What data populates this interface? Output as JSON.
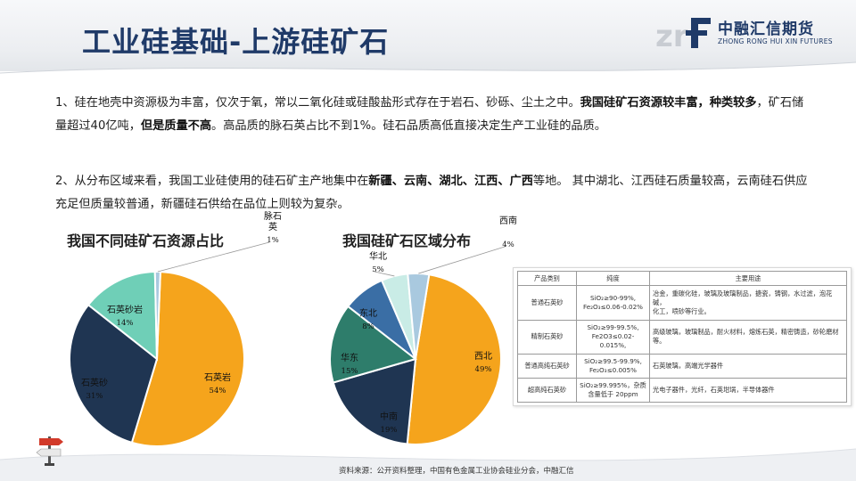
{
  "slide": {
    "title": "工业硅基础-上游硅矿石",
    "logo_cn": "中融汇信期货",
    "logo_en": "ZHONG RONG HUI XIN FUTURES",
    "source": "资料来源：公开资料整理，中国有色金属工业协会硅业分会，中融汇信"
  },
  "paragraphs": {
    "p1": [
      {
        "t": "1、硅在地壳中资源极为丰富，仅次于氧，常以二氧化硅或硅酸盐形式存在于岩石、砂砾、尘土之中。",
        "b": false
      },
      {
        "t": "我国硅矿石资源较丰富，种类较多",
        "b": true
      },
      {
        "t": "，矿石储量超过40亿吨，",
        "b": false
      },
      {
        "t": "但是质量不高",
        "b": true
      },
      {
        "t": "。高品质的脉石英占比不到1%。硅石品质高低直接决定生产工业硅的品质。",
        "b": false
      }
    ],
    "p2": [
      {
        "t": "2、从分布区域来看，我国工业硅使用的硅石矿主产地集中在",
        "b": false
      },
      {
        "t": "新疆、云南、湖北、江西、广西",
        "b": true
      },
      {
        "t": "等地。 其中湖北、江西硅石质量较高，云南硅石供应充足但质量较普通，新疆硅石供给在品位上则较为复杂。",
        "b": false
      }
    ]
  },
  "chart_data": [
    {
      "type": "pie",
      "title": "我国不同硅矿石资源占比",
      "slices": [
        {
          "name": "石英岩",
          "value": 54,
          "label": "54%",
          "color": "#f5a41c"
        },
        {
          "name": "石英砂",
          "value": 31,
          "label": "31%",
          "color": "#1f3552"
        },
        {
          "name": "石英砂岩",
          "value": 14,
          "label": "14%",
          "color": "#6fcfb7"
        },
        {
          "name": "脉石英",
          "value": 1,
          "label": "1%",
          "color": "#a9c9df"
        }
      ]
    },
    {
      "type": "pie",
      "title": "我国硅矿石区域分布",
      "slices": [
        {
          "name": "西北",
          "value": 49,
          "label": "49%",
          "color": "#f5a41c"
        },
        {
          "name": "中南",
          "value": 19,
          "label": "19%",
          "color": "#1f3552"
        },
        {
          "name": "华东",
          "value": 15,
          "label": "15%",
          "color": "#2e7d6b"
        },
        {
          "name": "东北",
          "value": 8,
          "label": "8%",
          "color": "#3a6ea5"
        },
        {
          "name": "华北",
          "value": 5,
          "label": "5%",
          "color": "#c9ece6"
        },
        {
          "name": "西南",
          "value": 4,
          "label": "4%",
          "color": "#a9c9df"
        }
      ]
    }
  ],
  "table": {
    "headers": [
      "产品类别",
      "纯度",
      "主要用途"
    ],
    "rows": [
      {
        "cat": "普通石英砂",
        "purity": [
          "SiO₂≥90-99%,",
          "Fe₂O₃≤0.06-0.02%"
        ],
        "use": [
          "冶金，重碳化硅，玻璃及玻璃制品，搪瓷，铸钢，水过滤，泡花碱，",
          "化工，喷砂等行业。"
        ]
      },
      {
        "cat": "精制石英砂",
        "purity": [
          "SiO₂≥99-99.5%,",
          "Fe2O3≤0.02-0.015%,"
        ],
        "use": [
          "高级玻璃，玻璃制品，耐火材料，熔炼石英，精密铸造，砂轮磨材等。"
        ]
      },
      {
        "cat": "普通高纯石英砂",
        "purity": [
          "SiO₂≥99.5-99.9%,",
          "Fe₂O₃≤0.005%"
        ],
        "use": [
          "石英玻璃，高端光学器件"
        ]
      },
      {
        "cat": "超高纯石英砂",
        "purity": [
          "SiO₂≥99.995%，杂质",
          "含量低于 20ppm"
        ],
        "use": [
          "光电子器件，光纤，石英坩埚，半导体器件"
        ]
      }
    ]
  }
}
